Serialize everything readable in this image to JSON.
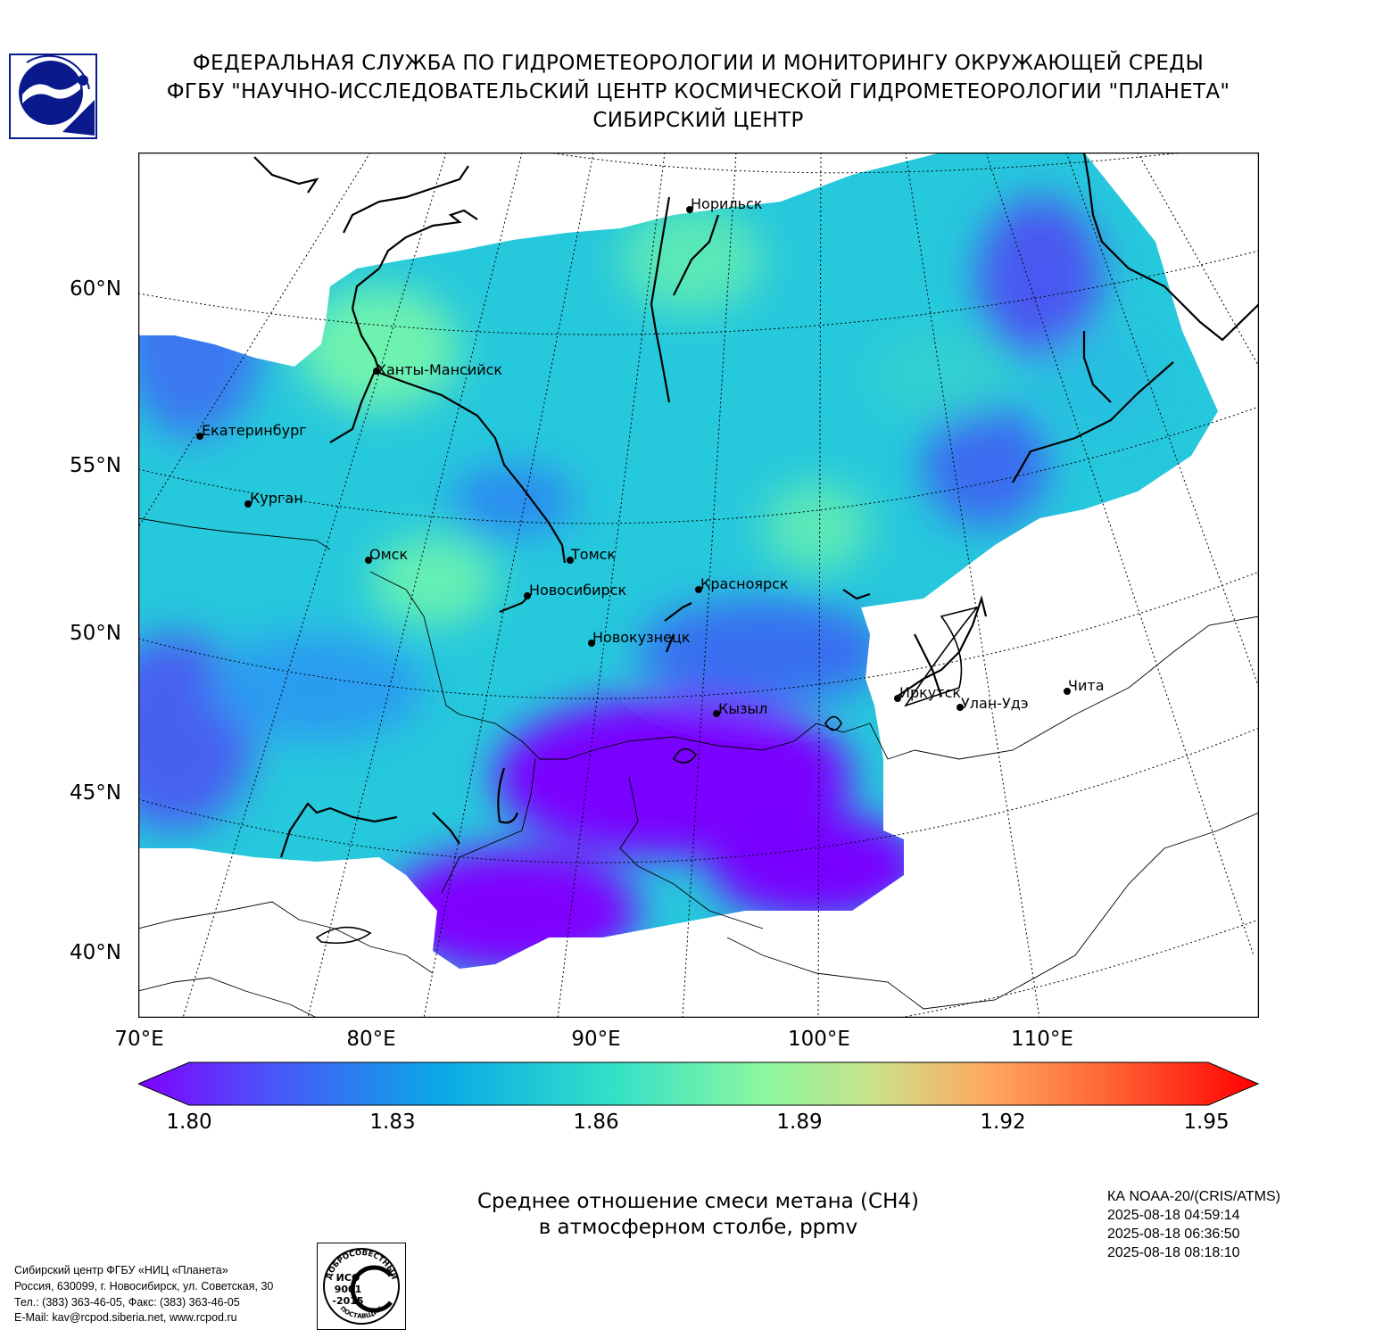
{
  "header": {
    "line1": "ФЕДЕРАЛЬНАЯ СЛУЖБА ПО ГИДРОМЕТЕОРОЛОГИИ И МОНИТОРИНГУ ОКРУЖАЮЩЕЙ СРЕДЫ",
    "line2": "ФГБУ \"НАУЧНО-ИССЛЕДОВАТЕЛЬСКИЙ ЦЕНТР КОСМИЧЕСКОЙ ГИДРОМЕТЕОРОЛОГИИ \"ПЛАНЕТА\"",
    "line3": "СИБИРСКИЙ ЦЕНТР"
  },
  "map": {
    "lat_labels": [
      "60°N",
      "55°N",
      "50°N",
      "45°N",
      "40°N"
    ],
    "lon_labels": [
      "70°E",
      "80°E",
      "90°E",
      "100°E",
      "110°E"
    ],
    "cities": [
      {
        "name": "Норильск"
      },
      {
        "name": "Ханты-Мансийск"
      },
      {
        "name": "Екатеринбург"
      },
      {
        "name": "Курган"
      },
      {
        "name": "Омск"
      },
      {
        "name": "Томск"
      },
      {
        "name": "Новосибирск"
      },
      {
        "name": "Красноярск"
      },
      {
        "name": "Новокузнецк"
      },
      {
        "name": "Иркутск"
      },
      {
        "name": "Улан-Удэ"
      },
      {
        "name": "Чита"
      },
      {
        "name": "Кызыл"
      }
    ],
    "colors": {
      "low": "#7f00ff",
      "mid": "#30e0c0",
      "high": "#ff0000"
    }
  },
  "colorbar": {
    "ticks": [
      "1.80",
      "1.83",
      "1.86",
      "1.89",
      "1.92",
      "1.95"
    ],
    "min": 1.8,
    "max": 1.95,
    "extend": "both",
    "colormap": "rainbow"
  },
  "product": {
    "title_line1": "Среднее отношение смеси метана (CH4)",
    "title_line2": "в атмосферном столбе, ppmv"
  },
  "satellite": {
    "name": "КА NOAA-20/(CRIS/ATMS)",
    "times": [
      "2025-08-18 04:59:14",
      "2025-08-18 06:36:50",
      "2025-08-18 08:18:10"
    ]
  },
  "contact": {
    "line1": "Сибирский центр ФГБУ «НИЦ «Планета»",
    "line2": "Россия, 630099, г. Новосибирск, ул. Советская, 30",
    "line3": "Тел.: (383) 363-46-05, Факс: (383) 363-46-05",
    "line4": "E-Mail: kav@rcpod.siberia.net, www.rcpod.ru"
  },
  "iso_badge": {
    "top_text": "ДОБРОСОВЕСТНЫЙ",
    "bottom_text": "ПОСТАВЩИК",
    "code1": "ИСО",
    "code2": "9001",
    "code3": "-2015"
  }
}
